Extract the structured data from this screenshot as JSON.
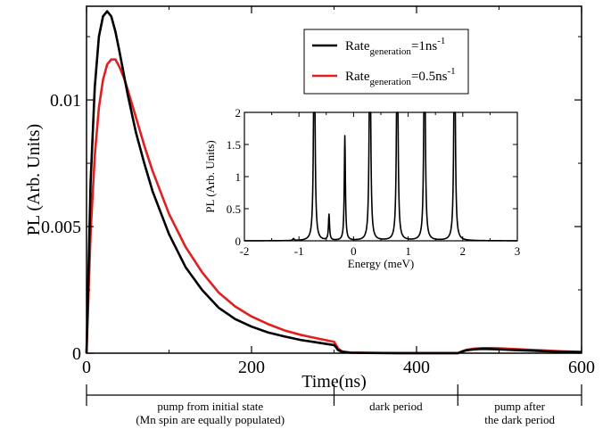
{
  "chart_data": [
    {
      "type": "line",
      "title": "",
      "xlabel": "Time(ns)",
      "ylabel": "PL (Arb. Units)",
      "xlim": [
        0,
        600
      ],
      "ylim": [
        0,
        0.0137
      ],
      "xticks": [
        0,
        200,
        400,
        600
      ],
      "xtick_labels": [
        "0",
        "200",
        "400",
        "600"
      ],
      "yticks": [
        0,
        0.005,
        0.01
      ],
      "ytick_labels": [
        "0",
        "0.005",
        "0.01"
      ],
      "grid": false,
      "legend": {
        "placement": "top-right",
        "entries": [
          {
            "main": "Rate",
            "sub": "generation",
            "rest": "=1ns",
            "sup": "-1",
            "color": "#000000"
          },
          {
            "main": "Rate",
            "sub": "generation",
            "rest": "=0.5ns",
            "sup": "-1",
            "color": "#e02020"
          }
        ]
      },
      "series": [
        {
          "color": "#000000",
          "x": [
            0,
            5,
            10,
            15,
            20,
            25,
            30,
            35,
            40,
            50,
            60,
            70,
            80,
            100,
            120,
            140,
            160,
            180,
            200,
            220,
            240,
            260,
            280,
            300,
            302,
            305,
            310,
            320,
            340,
            360,
            380,
            400,
            420,
            440,
            450,
            455,
            460,
            470,
            480,
            490,
            500,
            520,
            540,
            560,
            580,
            600
          ],
          "y": [
            0,
            0.0068,
            0.0105,
            0.0125,
            0.0133,
            0.0135,
            0.0133,
            0.0127,
            0.0119,
            0.0102,
            0.0087,
            0.0075,
            0.0064,
            0.0047,
            0.0034,
            0.0025,
            0.0018,
            0.00135,
            0.00105,
            0.00082,
            0.00066,
            0.00052,
            0.00042,
            0.00032,
            0.00025,
            0.00012,
            5e-05,
            2e-05,
            1e-05,
            5e-06,
            3e-06,
            2e-06,
            1e-06,
            1e-06,
            1e-06,
            6e-05,
            0.00011,
            0.00015,
            0.00017,
            0.00016,
            0.00015,
            0.00012,
            0.0001,
            7e-05,
            5e-05,
            4e-05
          ]
        },
        {
          "color": "#e02020",
          "x": [
            0,
            5,
            10,
            15,
            20,
            25,
            30,
            35,
            40,
            45,
            50,
            60,
            70,
            80,
            100,
            120,
            140,
            160,
            180,
            200,
            220,
            240,
            260,
            280,
            300,
            302,
            305,
            310,
            320,
            340,
            360,
            380,
            400,
            420,
            440,
            450,
            455,
            460,
            470,
            480,
            490,
            500,
            520,
            540,
            560,
            580,
            600
          ],
          "y": [
            0,
            0.0048,
            0.0078,
            0.0097,
            0.0108,
            0.0114,
            0.0116,
            0.0116,
            0.0113,
            0.0109,
            0.0104,
            0.0093,
            0.0082,
            0.0072,
            0.0055,
            0.0042,
            0.0032,
            0.0024,
            0.00185,
            0.00145,
            0.00115,
            0.0009,
            0.00072,
            0.00058,
            0.00045,
            0.00035,
            0.00018,
            7e-05,
            2e-05,
            1e-05,
            5e-06,
            3e-06,
            2e-06,
            1e-06,
            1e-06,
            1e-06,
            7e-05,
            0.00013,
            0.00018,
            0.0002,
            0.0002,
            0.00019,
            0.00016,
            0.00013,
            0.0001,
            7e-05,
            5e-05
          ]
        }
      ]
    },
    {
      "type": "line",
      "title": "",
      "xlabel": "Energy (meV)",
      "ylabel": "PL (Arb. Units)",
      "xlim": [
        -2,
        3
      ],
      "ylim": [
        0,
        2
      ],
      "xticks": [
        -2,
        -1,
        0,
        1,
        2,
        3
      ],
      "xtick_labels": [
        "-2",
        "-1",
        "0",
        "1",
        "2",
        "3"
      ],
      "yticks": [
        0,
        0.5,
        1,
        1.5,
        2
      ],
      "ytick_labels": [
        "0",
        "0.5",
        "1",
        "1.5",
        "2"
      ],
      "grid": false,
      "series": [
        {
          "color": "#000000",
          "peaks": [
            {
              "x": -1.1,
              "height": 0.03,
              "width": 0.015
            },
            {
              "x": -0.72,
              "height": 4.0,
              "width": 0.014
            },
            {
              "x": -0.45,
              "height": 0.4,
              "width": 0.012
            },
            {
              "x": -0.16,
              "height": 1.63,
              "width": 0.012
            },
            {
              "x": 0.3,
              "height": 4.0,
              "width": 0.014
            },
            {
              "x": 0.8,
              "height": 4.0,
              "width": 0.014
            },
            {
              "x": 1.3,
              "height": 4.0,
              "width": 0.014
            },
            {
              "x": 1.85,
              "height": 4.0,
              "width": 0.014
            }
          ]
        }
      ]
    }
  ],
  "annotation": {
    "segments": [
      {
        "start": 0,
        "end": 300,
        "line1": "pump from initial state",
        "line2": "(Mn spin are equally populated)"
      },
      {
        "start": 300,
        "end": 450,
        "line1": "dark period",
        "line2": ""
      },
      {
        "start": 450,
        "end": 600,
        "line1": "pump after",
        "line2": "the dark period"
      }
    ]
  }
}
